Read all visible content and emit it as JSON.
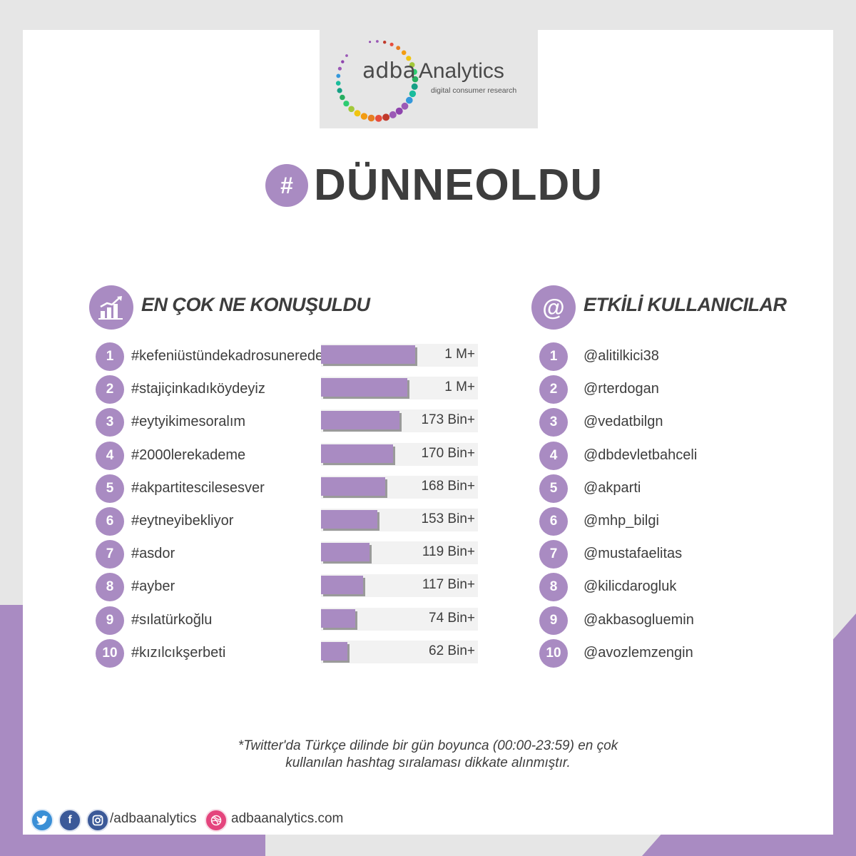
{
  "brand": {
    "logo_word": "adba",
    "logo_name": "Analytics",
    "logo_tagline": "digital consumer research",
    "accent": "#a98bc2"
  },
  "title": {
    "hash": "#",
    "text": "DÜNNEOLDU"
  },
  "left_section": {
    "title": "EN ÇOK NE KONUŞULDU",
    "icon": "growth-chart-icon",
    "items": [
      {
        "rank": "1",
        "tag": "#kefeniüstündekadrosunerede",
        "value": "1 M+",
        "fill": 0.6
      },
      {
        "rank": "2",
        "tag": "#stajiçinkadıköydeyiz",
        "value": "1 M+",
        "fill": 0.55
      },
      {
        "rank": "3",
        "tag": "#eytyikimesoralım",
        "value": "173 Bin+",
        "fill": 0.5
      },
      {
        "rank": "4",
        "tag": "#2000lerekademe",
        "value": "170 Bin+",
        "fill": 0.46
      },
      {
        "rank": "5",
        "tag": "#akpartitescilesesver",
        "value": "168 Bin+",
        "fill": 0.41
      },
      {
        "rank": "6",
        "tag": "#eytneyibekliyor",
        "value": "153 Bin+",
        "fill": 0.36
      },
      {
        "rank": "7",
        "tag": "#asdor",
        "value": "119 Bin+",
        "fill": 0.31
      },
      {
        "rank": "8",
        "tag": "#ayber",
        "value": "117 Bin+",
        "fill": 0.27
      },
      {
        "rank": "9",
        "tag": "#sılatürkoğlu",
        "value": "74 Bin+",
        "fill": 0.22
      },
      {
        "rank": "10",
        "tag": "#kızılcıkşerbeti",
        "value": "62 Bin+",
        "fill": 0.17
      }
    ]
  },
  "right_section": {
    "title": "ETKİLİ KULLANICILAR",
    "icon": "at-sign-icon",
    "icon_glyph": "@",
    "items": [
      {
        "rank": "1",
        "user": "@alitilkici38"
      },
      {
        "rank": "2",
        "user": "@rterdogan"
      },
      {
        "rank": "3",
        "user": "@vedatbilgn"
      },
      {
        "rank": "4",
        "user": "@dbdevletbahceli"
      },
      {
        "rank": "5",
        "user": "@akparti"
      },
      {
        "rank": "6",
        "user": "@mhp_bilgi"
      },
      {
        "rank": "7",
        "user": "@mustafaelitas"
      },
      {
        "rank": "8",
        "user": "@kilicdarogluk"
      },
      {
        "rank": "9",
        "user": "@akbasogluemin"
      },
      {
        "rank": "10",
        "user": "@avozlemzengin"
      }
    ]
  },
  "footnote": {
    "line1": "*Twitter'da Türkçe dilinde bir gün boyunca (00:00-23:59) en çok",
    "line2": "kullanılan hashtag sıralaması dikkate alınmıştır."
  },
  "footer": {
    "social_handle": "/adbaanalytics",
    "website": "adbaanalytics.com",
    "icons": [
      "twitter-icon",
      "facebook-icon",
      "instagram-icon",
      "dribbble-icon"
    ],
    "platform_label": "Twitter"
  }
}
